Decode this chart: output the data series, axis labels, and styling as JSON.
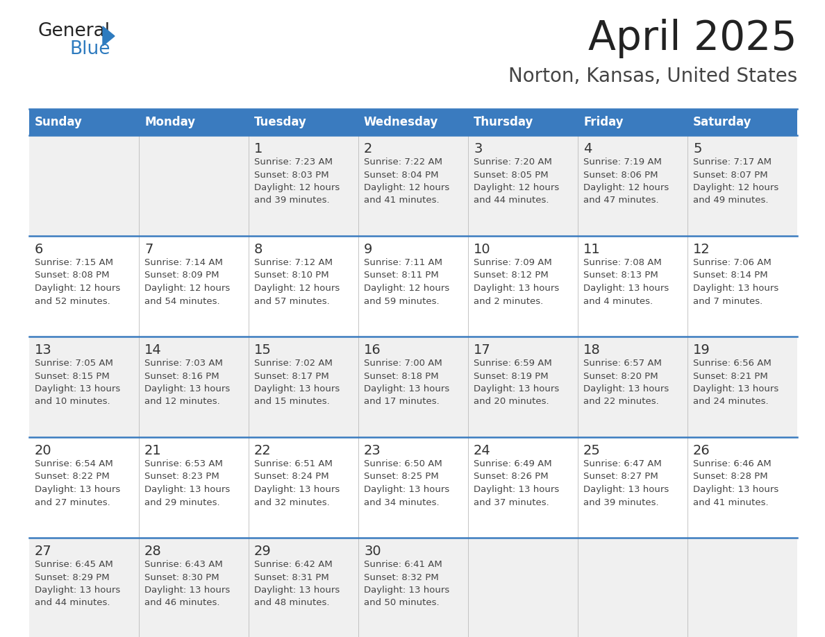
{
  "title": "April 2025",
  "subtitle": "Norton, Kansas, United States",
  "days_of_week": [
    "Sunday",
    "Monday",
    "Tuesday",
    "Wednesday",
    "Thursday",
    "Friday",
    "Saturday"
  ],
  "header_bg": "#3A7BBF",
  "header_text": "#FFFFFF",
  "row0_bg": "#F0F0F0",
  "row1_bg": "#FFFFFF",
  "border_color": "#3A7BBF",
  "separator_color": "#BBBBBB",
  "cell_text_color": "#444444",
  "day_number_color": "#333333",
  "title_color": "#222222",
  "subtitle_color": "#444444",
  "logo_black": "#222222",
  "logo_blue": "#2E7BBF",
  "triangle_color": "#2E7BBF",
  "calendar_data": [
    [
      {
        "day": "",
        "sunrise": "",
        "sunset": "",
        "daylight": ""
      },
      {
        "day": "",
        "sunrise": "",
        "sunset": "",
        "daylight": ""
      },
      {
        "day": "1",
        "sunrise": "Sunrise: 7:23 AM",
        "sunset": "Sunset: 8:03 PM",
        "daylight": "Daylight: 12 hours\nand 39 minutes."
      },
      {
        "day": "2",
        "sunrise": "Sunrise: 7:22 AM",
        "sunset": "Sunset: 8:04 PM",
        "daylight": "Daylight: 12 hours\nand 41 minutes."
      },
      {
        "day": "3",
        "sunrise": "Sunrise: 7:20 AM",
        "sunset": "Sunset: 8:05 PM",
        "daylight": "Daylight: 12 hours\nand 44 minutes."
      },
      {
        "day": "4",
        "sunrise": "Sunrise: 7:19 AM",
        "sunset": "Sunset: 8:06 PM",
        "daylight": "Daylight: 12 hours\nand 47 minutes."
      },
      {
        "day": "5",
        "sunrise": "Sunrise: 7:17 AM",
        "sunset": "Sunset: 8:07 PM",
        "daylight": "Daylight: 12 hours\nand 49 minutes."
      }
    ],
    [
      {
        "day": "6",
        "sunrise": "Sunrise: 7:15 AM",
        "sunset": "Sunset: 8:08 PM",
        "daylight": "Daylight: 12 hours\nand 52 minutes."
      },
      {
        "day": "7",
        "sunrise": "Sunrise: 7:14 AM",
        "sunset": "Sunset: 8:09 PM",
        "daylight": "Daylight: 12 hours\nand 54 minutes."
      },
      {
        "day": "8",
        "sunrise": "Sunrise: 7:12 AM",
        "sunset": "Sunset: 8:10 PM",
        "daylight": "Daylight: 12 hours\nand 57 minutes."
      },
      {
        "day": "9",
        "sunrise": "Sunrise: 7:11 AM",
        "sunset": "Sunset: 8:11 PM",
        "daylight": "Daylight: 12 hours\nand 59 minutes."
      },
      {
        "day": "10",
        "sunrise": "Sunrise: 7:09 AM",
        "sunset": "Sunset: 8:12 PM",
        "daylight": "Daylight: 13 hours\nand 2 minutes."
      },
      {
        "day": "11",
        "sunrise": "Sunrise: 7:08 AM",
        "sunset": "Sunset: 8:13 PM",
        "daylight": "Daylight: 13 hours\nand 4 minutes."
      },
      {
        "day": "12",
        "sunrise": "Sunrise: 7:06 AM",
        "sunset": "Sunset: 8:14 PM",
        "daylight": "Daylight: 13 hours\nand 7 minutes."
      }
    ],
    [
      {
        "day": "13",
        "sunrise": "Sunrise: 7:05 AM",
        "sunset": "Sunset: 8:15 PM",
        "daylight": "Daylight: 13 hours\nand 10 minutes."
      },
      {
        "day": "14",
        "sunrise": "Sunrise: 7:03 AM",
        "sunset": "Sunset: 8:16 PM",
        "daylight": "Daylight: 13 hours\nand 12 minutes."
      },
      {
        "day": "15",
        "sunrise": "Sunrise: 7:02 AM",
        "sunset": "Sunset: 8:17 PM",
        "daylight": "Daylight: 13 hours\nand 15 minutes."
      },
      {
        "day": "16",
        "sunrise": "Sunrise: 7:00 AM",
        "sunset": "Sunset: 8:18 PM",
        "daylight": "Daylight: 13 hours\nand 17 minutes."
      },
      {
        "day": "17",
        "sunrise": "Sunrise: 6:59 AM",
        "sunset": "Sunset: 8:19 PM",
        "daylight": "Daylight: 13 hours\nand 20 minutes."
      },
      {
        "day": "18",
        "sunrise": "Sunrise: 6:57 AM",
        "sunset": "Sunset: 8:20 PM",
        "daylight": "Daylight: 13 hours\nand 22 minutes."
      },
      {
        "day": "19",
        "sunrise": "Sunrise: 6:56 AM",
        "sunset": "Sunset: 8:21 PM",
        "daylight": "Daylight: 13 hours\nand 24 minutes."
      }
    ],
    [
      {
        "day": "20",
        "sunrise": "Sunrise: 6:54 AM",
        "sunset": "Sunset: 8:22 PM",
        "daylight": "Daylight: 13 hours\nand 27 minutes."
      },
      {
        "day": "21",
        "sunrise": "Sunrise: 6:53 AM",
        "sunset": "Sunset: 8:23 PM",
        "daylight": "Daylight: 13 hours\nand 29 minutes."
      },
      {
        "day": "22",
        "sunrise": "Sunrise: 6:51 AM",
        "sunset": "Sunset: 8:24 PM",
        "daylight": "Daylight: 13 hours\nand 32 minutes."
      },
      {
        "day": "23",
        "sunrise": "Sunrise: 6:50 AM",
        "sunset": "Sunset: 8:25 PM",
        "daylight": "Daylight: 13 hours\nand 34 minutes."
      },
      {
        "day": "24",
        "sunrise": "Sunrise: 6:49 AM",
        "sunset": "Sunset: 8:26 PM",
        "daylight": "Daylight: 13 hours\nand 37 minutes."
      },
      {
        "day": "25",
        "sunrise": "Sunrise: 6:47 AM",
        "sunset": "Sunset: 8:27 PM",
        "daylight": "Daylight: 13 hours\nand 39 minutes."
      },
      {
        "day": "26",
        "sunrise": "Sunrise: 6:46 AM",
        "sunset": "Sunset: 8:28 PM",
        "daylight": "Daylight: 13 hours\nand 41 minutes."
      }
    ],
    [
      {
        "day": "27",
        "sunrise": "Sunrise: 6:45 AM",
        "sunset": "Sunset: 8:29 PM",
        "daylight": "Daylight: 13 hours\nand 44 minutes."
      },
      {
        "day": "28",
        "sunrise": "Sunrise: 6:43 AM",
        "sunset": "Sunset: 8:30 PM",
        "daylight": "Daylight: 13 hours\nand 46 minutes."
      },
      {
        "day": "29",
        "sunrise": "Sunrise: 6:42 AM",
        "sunset": "Sunset: 8:31 PM",
        "daylight": "Daylight: 13 hours\nand 48 minutes."
      },
      {
        "day": "30",
        "sunrise": "Sunrise: 6:41 AM",
        "sunset": "Sunset: 8:32 PM",
        "daylight": "Daylight: 13 hours\nand 50 minutes."
      },
      {
        "day": "",
        "sunrise": "",
        "sunset": "",
        "daylight": ""
      },
      {
        "day": "",
        "sunrise": "",
        "sunset": "",
        "daylight": ""
      },
      {
        "day": "",
        "sunrise": "",
        "sunset": "",
        "daylight": ""
      }
    ]
  ]
}
